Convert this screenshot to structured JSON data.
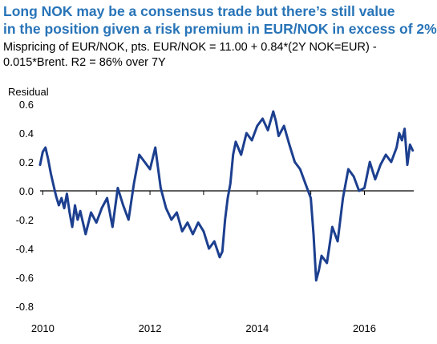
{
  "title_lines": [
    "Long NOK may be a consensus trade but there’s still value",
    "in the position given a risk premium in EUR/NOK in excess of 2%"
  ],
  "subtitle_lines": [
    "Mispricing of EUR/NOK, pts. EUR/NOK = 11.00 + 0.84*(2Y NOK=EUR) -",
    "0.015*Brent. R2 = 86% over 7Y"
  ],
  "colors": {
    "series": "#1c3f8f",
    "title": "#2874b8"
  },
  "chart_data": {
    "type": "line",
    "ylabel": "Residual",
    "ylim": [
      -0.8,
      0.6
    ],
    "yticks": [
      0.6,
      0.4,
      0.2,
      0.0,
      -0.2,
      -0.4,
      -0.6,
      -0.8
    ],
    "ytick_labels": [
      "0.6",
      "0.4",
      "0.2",
      "0.0",
      "-0.2",
      "-0.4",
      "-0.6",
      "-0.8"
    ],
    "xlim": [
      2009.95,
      2016.92
    ],
    "xtick_labels": [
      "2010",
      "2012",
      "2014",
      "2016"
    ],
    "xticks": [
      2010,
      2012,
      2014,
      2016
    ],
    "grid": false,
    "series": [
      {
        "x": [
          2009.95,
          2010.0,
          2010.05,
          2010.1,
          2010.15,
          2010.2,
          2010.25,
          2010.3,
          2010.35,
          2010.4,
          2010.45,
          2010.5,
          2010.55,
          2010.6,
          2010.65,
          2010.7,
          2010.8,
          2010.9,
          2011.0,
          2011.1,
          2011.2,
          2011.3,
          2011.4,
          2011.5,
          2011.6,
          2011.7,
          2011.8,
          2011.9,
          2012.0,
          2012.1,
          2012.2,
          2012.3,
          2012.4,
          2012.5,
          2012.6,
          2012.7,
          2012.8,
          2012.9,
          2013.0,
          2013.1,
          2013.2,
          2013.3,
          2013.35,
          2013.4,
          2013.45,
          2013.5,
          2013.55,
          2013.6,
          2013.7,
          2013.8,
          2013.9,
          2014.0,
          2014.1,
          2014.2,
          2014.3,
          2014.35,
          2014.4,
          2014.5,
          2014.6,
          2014.7,
          2014.8,
          2014.9,
          2015.0,
          2015.05,
          2015.1,
          2015.15,
          2015.2,
          2015.3,
          2015.4,
          2015.5,
          2015.6,
          2015.7,
          2015.8,
          2015.9,
          2016.0,
          2016.1,
          2016.2,
          2016.3,
          2016.4,
          2016.5,
          2016.6,
          2016.65,
          2016.7,
          2016.75,
          2016.8,
          2016.85,
          2016.9
        ],
        "y": [
          0.18,
          0.27,
          0.3,
          0.22,
          0.12,
          0.04,
          -0.04,
          -0.1,
          -0.05,
          -0.12,
          -0.02,
          -0.15,
          -0.25,
          -0.1,
          -0.2,
          -0.14,
          -0.3,
          -0.15,
          -0.22,
          -0.12,
          -0.05,
          -0.25,
          0.02,
          -0.1,
          -0.2,
          0.05,
          0.25,
          0.2,
          0.15,
          0.3,
          0.02,
          -0.12,
          -0.2,
          -0.15,
          -0.28,
          -0.22,
          -0.3,
          -0.22,
          -0.28,
          -0.4,
          -0.35,
          -0.46,
          -0.42,
          -0.2,
          -0.05,
          0.05,
          0.25,
          0.34,
          0.25,
          0.4,
          0.35,
          0.45,
          0.5,
          0.42,
          0.55,
          0.48,
          0.38,
          0.45,
          0.32,
          0.2,
          0.15,
          0.05,
          -0.05,
          -0.3,
          -0.62,
          -0.55,
          -0.45,
          -0.5,
          -0.25,
          -0.35,
          -0.05,
          0.15,
          0.1,
          0.0,
          0.02,
          0.2,
          0.08,
          0.18,
          0.25,
          0.2,
          0.3,
          0.4,
          0.35,
          0.43,
          0.18,
          0.32,
          0.28
        ]
      }
    ]
  }
}
